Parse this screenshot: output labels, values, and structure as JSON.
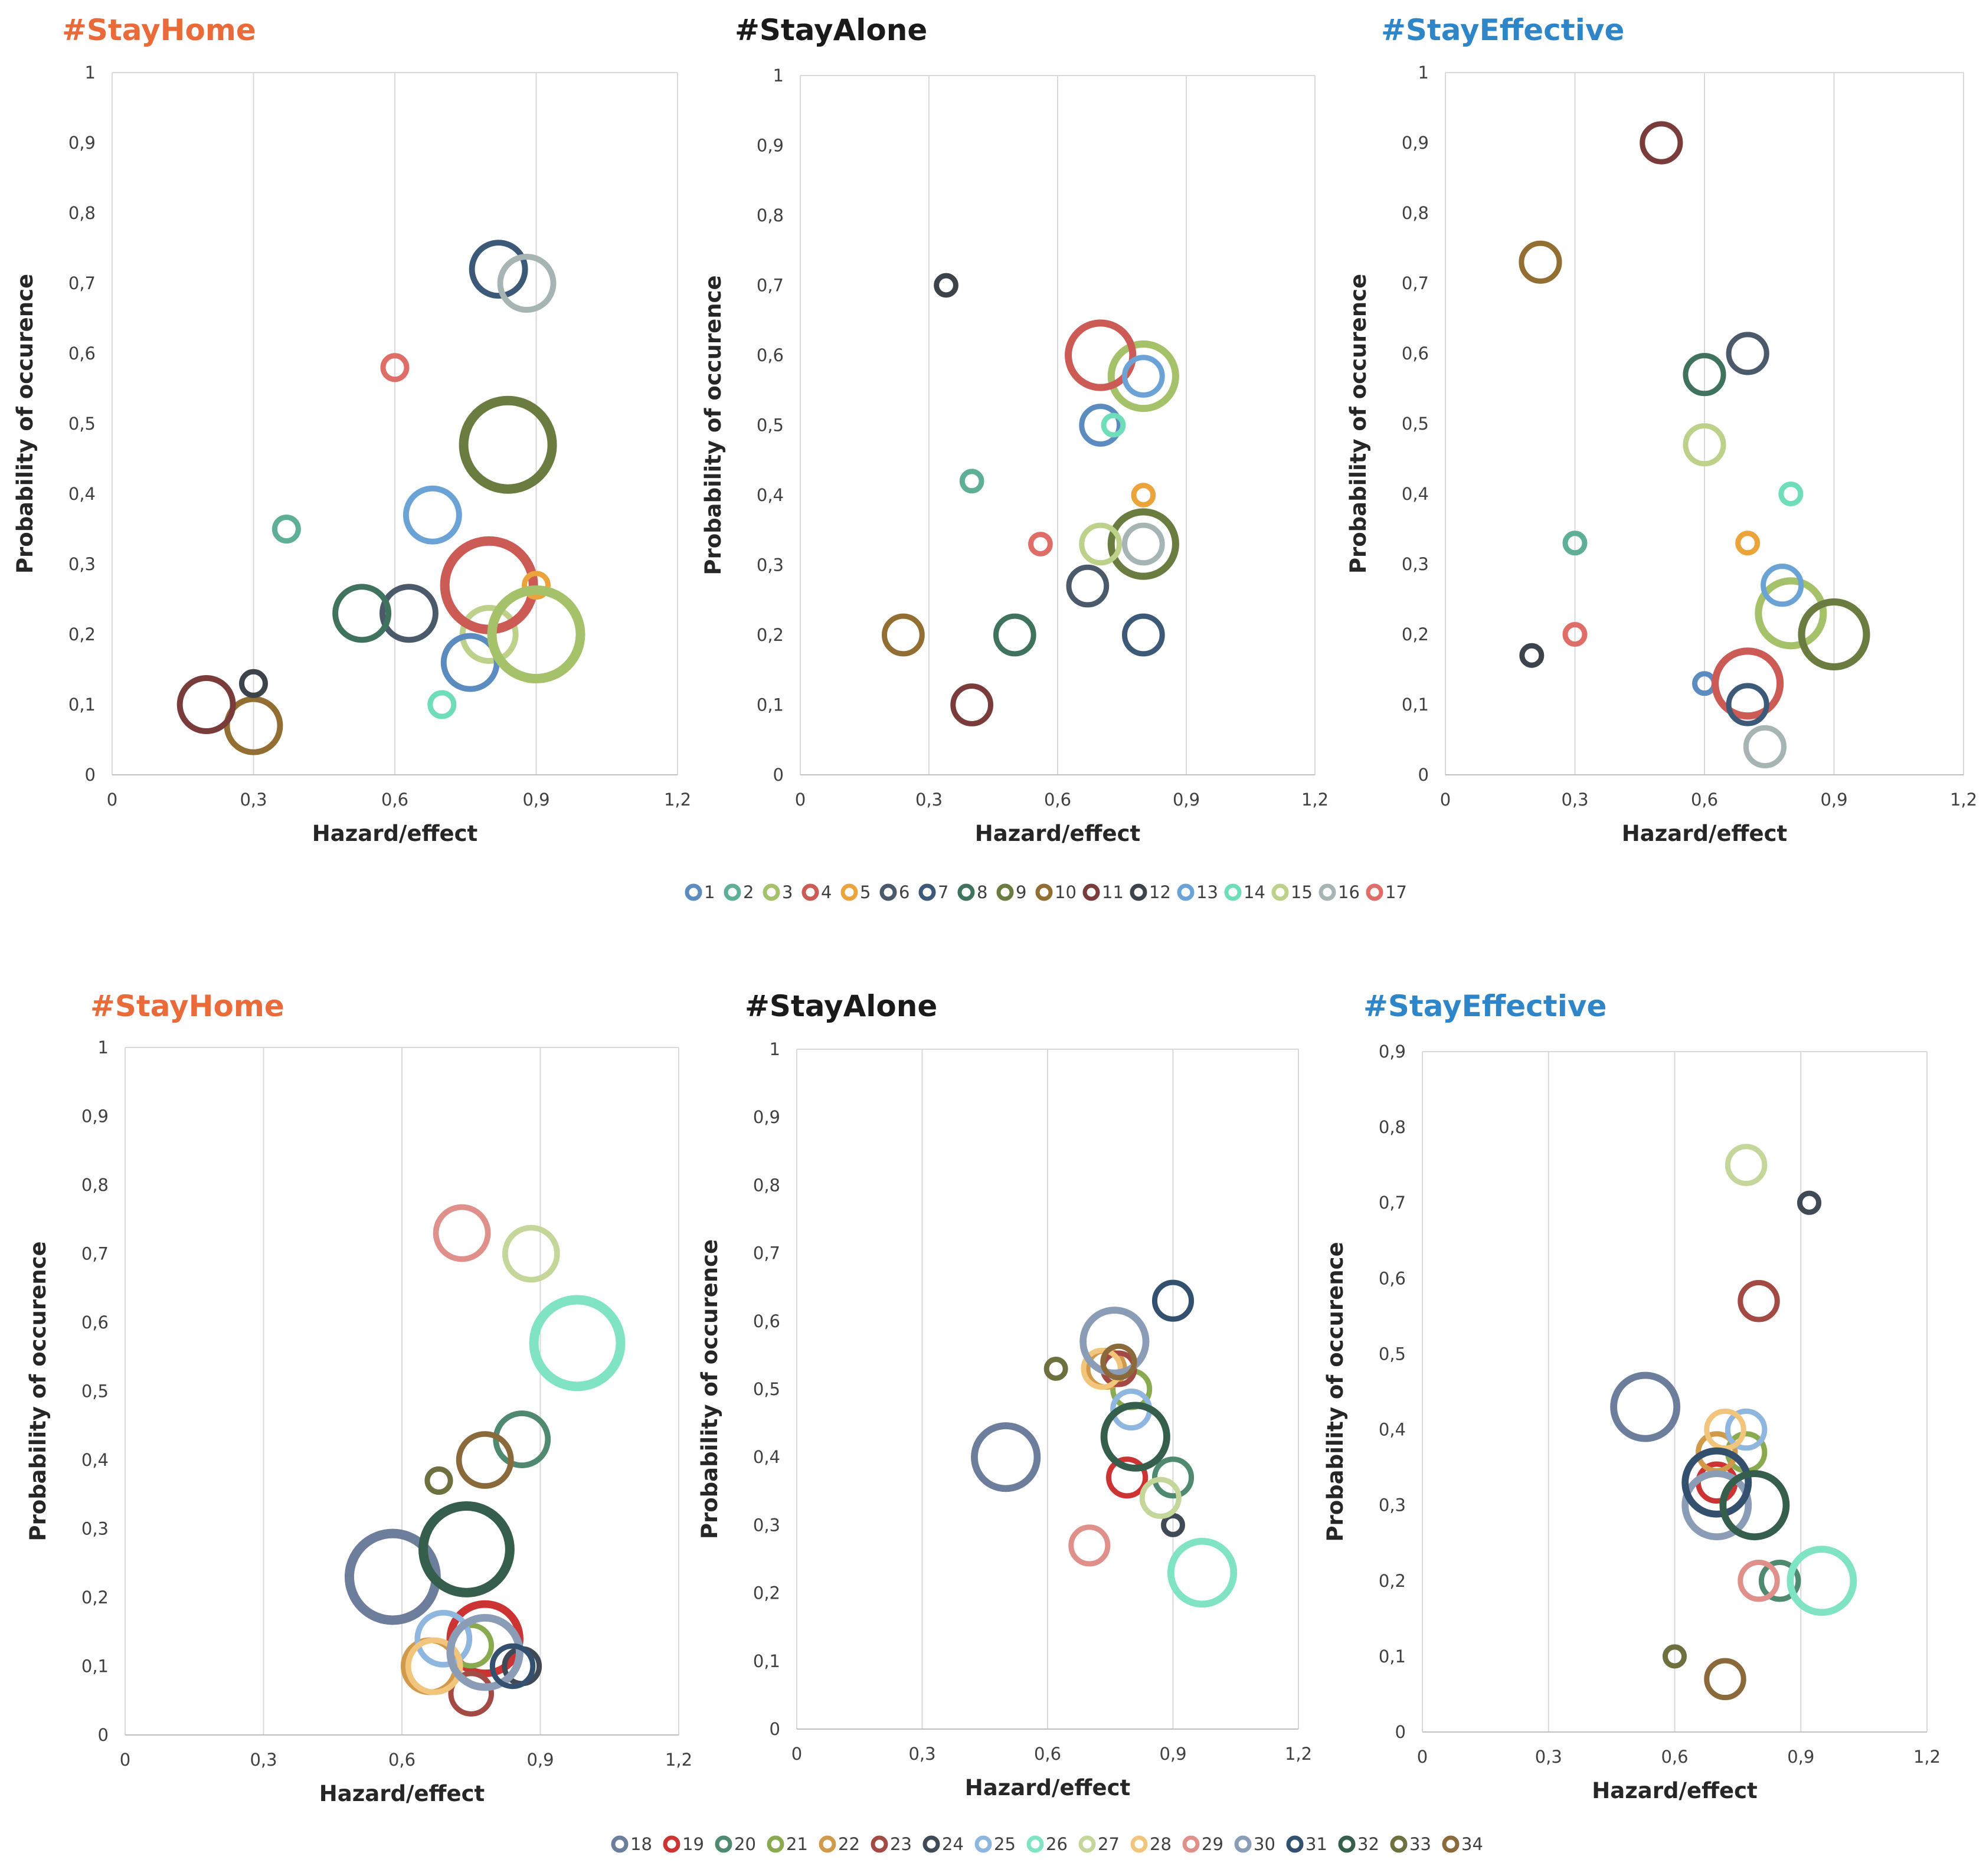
{
  "colors": {
    "stayhome": "#E96B3A",
    "stayalone": "#1A1A1A",
    "stayeffective": "#2E86C8",
    "grid": "#D9D9D9",
    "text": "#404040"
  },
  "legends": [
    {
      "entries": [
        {
          "label": "1",
          "color": "#5B8BBF"
        },
        {
          "label": "2",
          "color": "#5FAE97"
        },
        {
          "label": "3",
          "color": "#A5C16A"
        },
        {
          "label": "4",
          "color": "#CC5A55"
        },
        {
          "label": "5",
          "color": "#EBA43C"
        },
        {
          "label": "6",
          "color": "#4B5A6A"
        },
        {
          "label": "7",
          "color": "#3C5A78"
        },
        {
          "label": "8",
          "color": "#3F735E"
        },
        {
          "label": "9",
          "color": "#6B7C40"
        },
        {
          "label": "10",
          "color": "#936E33"
        },
        {
          "label": "11",
          "color": "#7A3B3B"
        },
        {
          "label": "12",
          "color": "#3D434A"
        },
        {
          "label": "13",
          "color": "#6BA3D6"
        },
        {
          "label": "14",
          "color": "#6FDDB9"
        },
        {
          "label": "15",
          "color": "#BDD18A"
        },
        {
          "label": "16",
          "color": "#A6B5B4"
        },
        {
          "label": "17",
          "color": "#DE6E67"
        }
      ]
    },
    {
      "entries": [
        {
          "label": "18",
          "color": "#6C7E9B"
        },
        {
          "label": "19",
          "color": "#CC3333"
        },
        {
          "label": "20",
          "color": "#4F8A70"
        },
        {
          "label": "21",
          "color": "#8AAA4F"
        },
        {
          "label": "22",
          "color": "#D09A4A"
        },
        {
          "label": "23",
          "color": "#A44A45"
        },
        {
          "label": "24",
          "color": "#3F4A56"
        },
        {
          "label": "25",
          "color": "#8FB6DE"
        },
        {
          "label": "26",
          "color": "#7FE3C4"
        },
        {
          "label": "27",
          "color": "#C5D69A"
        },
        {
          "label": "28",
          "color": "#F2C57C"
        },
        {
          "label": "29",
          "color": "#E0908B"
        },
        {
          "label": "30",
          "color": "#8B9DB6"
        },
        {
          "label": "31",
          "color": "#33506E"
        },
        {
          "label": "32",
          "color": "#355E4C"
        },
        {
          "label": "33",
          "color": "#6E7040"
        },
        {
          "label": "34",
          "color": "#8A6A3A"
        }
      ]
    }
  ],
  "chart_data": [
    {
      "type": "bubble",
      "row": 1,
      "col": 1,
      "title": "#StayHome",
      "title_color_key": "stayhome",
      "xlabel": "Hazard/effect",
      "ylabel": "Probability of occurence",
      "xlim": [
        0,
        1.2
      ],
      "ylim": [
        0,
        1
      ],
      "xticks": [
        0,
        0.3,
        0.6,
        0.9,
        1.2
      ],
      "xtick_labels": [
        "0",
        "0,3",
        "0,6",
        "0,9",
        "1,2"
      ],
      "yticks": [
        0,
        0.1,
        0.2,
        0.3,
        0.4,
        0.5,
        0.6,
        0.7,
        0.8,
        0.9,
        1
      ],
      "ytick_labels": [
        "0",
        "0,1",
        "0,2",
        "0,3",
        "0,4",
        "0,5",
        "0,6",
        "0,7",
        "0,8",
        "0,9",
        "1"
      ],
      "series": [
        {
          "name": "13",
          "x": 0.68,
          "y": 0.37,
          "size": 45
        },
        {
          "name": "2",
          "x": 0.37,
          "y": 0.35,
          "size": 20
        },
        {
          "name": "15",
          "x": 0.8,
          "y": 0.2,
          "size": 45
        },
        {
          "name": "4",
          "x": 0.8,
          "y": 0.27,
          "size": 75
        },
        {
          "name": "5",
          "x": 0.9,
          "y": 0.27,
          "size": 20
        },
        {
          "name": "6",
          "x": 0.63,
          "y": 0.23,
          "size": 45
        },
        {
          "name": "7",
          "x": 0.82,
          "y": 0.72,
          "size": 45
        },
        {
          "name": "8",
          "x": 0.53,
          "y": 0.23,
          "size": 45
        },
        {
          "name": "9",
          "x": 0.84,
          "y": 0.47,
          "size": 75
        },
        {
          "name": "10",
          "x": 0.3,
          "y": 0.07,
          "size": 45
        },
        {
          "name": "11",
          "x": 0.2,
          "y": 0.1,
          "size": 45
        },
        {
          "name": "12",
          "x": 0.3,
          "y": 0.13,
          "size": 20
        },
        {
          "name": "1",
          "x": 0.76,
          "y": 0.16,
          "size": 45
        },
        {
          "name": "14",
          "x": 0.7,
          "y": 0.1,
          "size": 20
        },
        {
          "name": "3",
          "x": 0.9,
          "y": 0.2,
          "size": 75
        },
        {
          "name": "16",
          "x": 0.88,
          "y": 0.7,
          "size": 45
        },
        {
          "name": "17",
          "x": 0.6,
          "y": 0.58,
          "size": 20
        }
      ]
    },
    {
      "type": "bubble",
      "row": 1,
      "col": 2,
      "title": "#StayAlone",
      "title_color_key": "stayalone",
      "xlabel": "Hazard/effect",
      "ylabel": "Probability of occurence",
      "xlim": [
        0,
        1.2
      ],
      "ylim": [
        0,
        1
      ],
      "xticks": [
        0,
        0.3,
        0.6,
        0.9,
        1.2
      ],
      "xtick_labels": [
        "0",
        "0,3",
        "0,6",
        "0,9",
        "1,2"
      ],
      "yticks": [
        0,
        0.1,
        0.2,
        0.3,
        0.4,
        0.5,
        0.6,
        0.7,
        0.8,
        0.9,
        1
      ],
      "ytick_labels": [
        "0",
        "0,1",
        "0,2",
        "0,3",
        "0,4",
        "0,5",
        "0,6",
        "0,7",
        "0,8",
        "0,9",
        "1"
      ],
      "series": [
        {
          "name": "1",
          "x": 0.7,
          "y": 0.5,
          "size": 35
        },
        {
          "name": "2",
          "x": 0.4,
          "y": 0.42,
          "size": 18
        },
        {
          "name": "3",
          "x": 0.8,
          "y": 0.57,
          "size": 60
        },
        {
          "name": "4",
          "x": 0.7,
          "y": 0.6,
          "size": 60
        },
        {
          "name": "5",
          "x": 0.8,
          "y": 0.4,
          "size": 18
        },
        {
          "name": "6",
          "x": 0.67,
          "y": 0.27,
          "size": 35
        },
        {
          "name": "7",
          "x": 0.8,
          "y": 0.2,
          "size": 35
        },
        {
          "name": "8",
          "x": 0.5,
          "y": 0.2,
          "size": 35
        },
        {
          "name": "9",
          "x": 0.8,
          "y": 0.33,
          "size": 60
        },
        {
          "name": "10",
          "x": 0.24,
          "y": 0.2,
          "size": 35
        },
        {
          "name": "11",
          "x": 0.4,
          "y": 0.1,
          "size": 35
        },
        {
          "name": "12",
          "x": 0.34,
          "y": 0.7,
          "size": 18
        },
        {
          "name": "13",
          "x": 0.8,
          "y": 0.57,
          "size": 35
        },
        {
          "name": "14",
          "x": 0.73,
          "y": 0.5,
          "size": 18
        },
        {
          "name": "15",
          "x": 0.7,
          "y": 0.33,
          "size": 35
        },
        {
          "name": "16",
          "x": 0.8,
          "y": 0.33,
          "size": 35
        },
        {
          "name": "17",
          "x": 0.56,
          "y": 0.33,
          "size": 18
        }
      ]
    },
    {
      "type": "bubble",
      "row": 1,
      "col": 3,
      "title": "#StayEffective",
      "title_color_key": "stayeffective",
      "xlabel": "Hazard/effect",
      "ylabel": "Probability of occurence",
      "xlim": [
        0,
        1.2
      ],
      "ylim": [
        0,
        1
      ],
      "xticks": [
        0,
        0.3,
        0.6,
        0.9,
        1.2
      ],
      "xtick_labels": [
        "0",
        "0,3",
        "0,6",
        "0,9",
        "1,2"
      ],
      "yticks": [
        0,
        0.1,
        0.2,
        0.3,
        0.4,
        0.5,
        0.6,
        0.7,
        0.8,
        0.9,
        1
      ],
      "ytick_labels": [
        "0",
        "0,1",
        "0,2",
        "0,3",
        "0,4",
        "0,5",
        "0,6",
        "0,7",
        "0,8",
        "0,9",
        "1"
      ],
      "series": [
        {
          "name": "1",
          "x": 0.6,
          "y": 0.13,
          "size": 18
        },
        {
          "name": "2",
          "x": 0.3,
          "y": 0.33,
          "size": 18
        },
        {
          "name": "3",
          "x": 0.8,
          "y": 0.23,
          "size": 60
        },
        {
          "name": "4",
          "x": 0.7,
          "y": 0.13,
          "size": 60
        },
        {
          "name": "5",
          "x": 0.7,
          "y": 0.33,
          "size": 18
        },
        {
          "name": "6",
          "x": 0.7,
          "y": 0.6,
          "size": 35
        },
        {
          "name": "7",
          "x": 0.7,
          "y": 0.1,
          "size": 35
        },
        {
          "name": "8",
          "x": 0.6,
          "y": 0.57,
          "size": 35
        },
        {
          "name": "9",
          "x": 0.9,
          "y": 0.2,
          "size": 60
        },
        {
          "name": "10",
          "x": 0.22,
          "y": 0.73,
          "size": 35
        },
        {
          "name": "11",
          "x": 0.5,
          "y": 0.9,
          "size": 35
        },
        {
          "name": "12",
          "x": 0.2,
          "y": 0.17,
          "size": 18
        },
        {
          "name": "13",
          "x": 0.78,
          "y": 0.27,
          "size": 35
        },
        {
          "name": "14",
          "x": 0.8,
          "y": 0.4,
          "size": 18
        },
        {
          "name": "15",
          "x": 0.6,
          "y": 0.47,
          "size": 35
        },
        {
          "name": "16",
          "x": 0.74,
          "y": 0.04,
          "size": 35
        },
        {
          "name": "17",
          "x": 0.3,
          "y": 0.2,
          "size": 18
        }
      ]
    },
    {
      "type": "bubble",
      "row": 2,
      "col": 1,
      "title": "#StayHome",
      "title_color_key": "stayhome",
      "xlabel": "Hazard/effect",
      "ylabel": "Probability of occurence",
      "xlim": [
        0,
        1.2
      ],
      "ylim": [
        0,
        1
      ],
      "xticks": [
        0,
        0.3,
        0.6,
        0.9,
        1.2
      ],
      "xtick_labels": [
        "0",
        "0,3",
        "0,6",
        "0,9",
        "1,2"
      ],
      "yticks": [
        0,
        0.1,
        0.2,
        0.3,
        0.4,
        0.5,
        0.6,
        0.7,
        0.8,
        0.9,
        1
      ],
      "ytick_labels": [
        "0",
        "0,1",
        "0,2",
        "0,3",
        "0,4",
        "0,5",
        "0,6",
        "0,7",
        "0,8",
        "0,9",
        "1"
      ],
      "series": [
        {
          "name": "18",
          "x": 0.58,
          "y": 0.23,
          "size": 75
        },
        {
          "name": "19",
          "x": 0.78,
          "y": 0.14,
          "size": 60
        },
        {
          "name": "20",
          "x": 0.86,
          "y": 0.43,
          "size": 45
        },
        {
          "name": "21",
          "x": 0.75,
          "y": 0.13,
          "size": 35
        },
        {
          "name": "22",
          "x": 0.66,
          "y": 0.1,
          "size": 45
        },
        {
          "name": "23",
          "x": 0.75,
          "y": 0.06,
          "size": 35
        },
        {
          "name": "24",
          "x": 0.86,
          "y": 0.1,
          "size": 30
        },
        {
          "name": "25",
          "x": 0.69,
          "y": 0.14,
          "size": 45
        },
        {
          "name": "26",
          "x": 0.98,
          "y": 0.57,
          "size": 75
        },
        {
          "name": "27",
          "x": 0.88,
          "y": 0.7,
          "size": 45
        },
        {
          "name": "28",
          "x": 0.67,
          "y": 0.1,
          "size": 45
        },
        {
          "name": "29",
          "x": 0.73,
          "y": 0.73,
          "size": 45
        },
        {
          "name": "30",
          "x": 0.78,
          "y": 0.12,
          "size": 60
        },
        {
          "name": "31",
          "x": 0.84,
          "y": 0.1,
          "size": 35
        },
        {
          "name": "32",
          "x": 0.74,
          "y": 0.27,
          "size": 75
        },
        {
          "name": "33",
          "x": 0.68,
          "y": 0.37,
          "size": 20
        },
        {
          "name": "34",
          "x": 0.78,
          "y": 0.4,
          "size": 45
        }
      ]
    },
    {
      "type": "bubble",
      "row": 2,
      "col": 2,
      "title": "#StayAlone",
      "title_color_key": "stayalone",
      "xlabel": "Hazard/effect",
      "ylabel": "Probability of occurence",
      "xlim": [
        0,
        1.2
      ],
      "ylim": [
        0,
        1
      ],
      "xticks": [
        0,
        0.3,
        0.6,
        0.9,
        1.2
      ],
      "xtick_labels": [
        "0",
        "0,3",
        "0,6",
        "0,9",
        "1,2"
      ],
      "yticks": [
        0,
        0.1,
        0.2,
        0.3,
        0.4,
        0.5,
        0.6,
        0.7,
        0.8,
        0.9,
        1
      ],
      "ytick_labels": [
        "0",
        "0,1",
        "0,2",
        "0,3",
        "0,4",
        "0,5",
        "0,6",
        "0,7",
        "0,8",
        "0,9",
        "1"
      ],
      "series": [
        {
          "name": "18",
          "x": 0.5,
          "y": 0.4,
          "size": 60
        },
        {
          "name": "19",
          "x": 0.79,
          "y": 0.37,
          "size": 35
        },
        {
          "name": "20",
          "x": 0.9,
          "y": 0.37,
          "size": 35
        },
        {
          "name": "21",
          "x": 0.8,
          "y": 0.5,
          "size": 35
        },
        {
          "name": "22",
          "x": 0.74,
          "y": 0.53,
          "size": 35
        },
        {
          "name": "23",
          "x": 0.77,
          "y": 0.53,
          "size": 30
        },
        {
          "name": "24",
          "x": 0.9,
          "y": 0.3,
          "size": 18
        },
        {
          "name": "25",
          "x": 0.8,
          "y": 0.47,
          "size": 35
        },
        {
          "name": "26",
          "x": 0.97,
          "y": 0.23,
          "size": 60
        },
        {
          "name": "27",
          "x": 0.87,
          "y": 0.34,
          "size": 35
        },
        {
          "name": "28",
          "x": 0.73,
          "y": 0.53,
          "size": 35
        },
        {
          "name": "29",
          "x": 0.7,
          "y": 0.27,
          "size": 35
        },
        {
          "name": "30",
          "x": 0.76,
          "y": 0.57,
          "size": 60
        },
        {
          "name": "31",
          "x": 0.9,
          "y": 0.63,
          "size": 35
        },
        {
          "name": "32",
          "x": 0.81,
          "y": 0.43,
          "size": 60
        },
        {
          "name": "33",
          "x": 0.62,
          "y": 0.53,
          "size": 18
        },
        {
          "name": "34",
          "x": 0.77,
          "y": 0.54,
          "size": 30
        }
      ]
    },
    {
      "type": "bubble",
      "row": 2,
      "col": 3,
      "title": "#StayEffective",
      "title_color_key": "stayeffective",
      "xlabel": "Hazard/effect",
      "ylabel": "Probability of occurence",
      "xlim": [
        0,
        1.2
      ],
      "ylim": [
        0,
        0.9
      ],
      "xticks": [
        0,
        0.3,
        0.6,
        0.9,
        1.2
      ],
      "xtick_labels": [
        "0",
        "0,3",
        "0,6",
        "0,9",
        "1,2"
      ],
      "yticks": [
        0,
        0.1,
        0.2,
        0.3,
        0.4,
        0.5,
        0.6,
        0.7,
        0.8,
        0.9
      ],
      "ytick_labels": [
        "0",
        "0,1",
        "0,2",
        "0,3",
        "0,4",
        "0,5",
        "0,6",
        "0,7",
        "0,8",
        "0,9"
      ],
      "series": [
        {
          "name": "18",
          "x": 0.53,
          "y": 0.43,
          "size": 60
        },
        {
          "name": "19",
          "x": 0.7,
          "y": 0.33,
          "size": 35
        },
        {
          "name": "20",
          "x": 0.85,
          "y": 0.2,
          "size": 35
        },
        {
          "name": "21",
          "x": 0.77,
          "y": 0.37,
          "size": 35
        },
        {
          "name": "22",
          "x": 0.7,
          "y": 0.37,
          "size": 35
        },
        {
          "name": "23",
          "x": 0.8,
          "y": 0.57,
          "size": 35
        },
        {
          "name": "24",
          "x": 0.92,
          "y": 0.7,
          "size": 18
        },
        {
          "name": "25",
          "x": 0.77,
          "y": 0.4,
          "size": 35
        },
        {
          "name": "26",
          "x": 0.95,
          "y": 0.2,
          "size": 60
        },
        {
          "name": "27",
          "x": 0.77,
          "y": 0.75,
          "size": 35
        },
        {
          "name": "28",
          "x": 0.72,
          "y": 0.4,
          "size": 35
        },
        {
          "name": "29",
          "x": 0.8,
          "y": 0.2,
          "size": 35
        },
        {
          "name": "30",
          "x": 0.7,
          "y": 0.3,
          "size": 60
        },
        {
          "name": "31",
          "x": 0.7,
          "y": 0.33,
          "size": 60
        },
        {
          "name": "32",
          "x": 0.79,
          "y": 0.3,
          "size": 60
        },
        {
          "name": "33",
          "x": 0.6,
          "y": 0.1,
          "size": 18
        },
        {
          "name": "34",
          "x": 0.72,
          "y": 0.07,
          "size": 35
        }
      ]
    }
  ]
}
